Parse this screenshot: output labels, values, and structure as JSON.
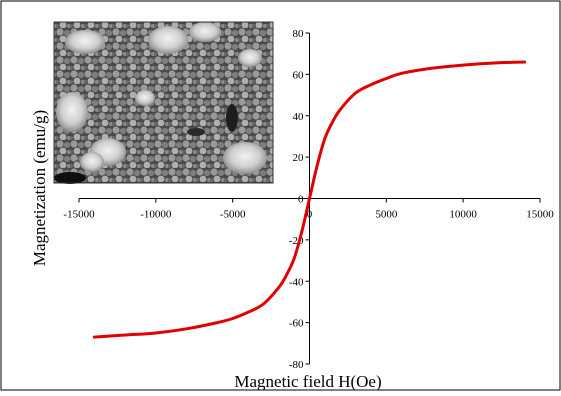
{
  "chart_data": {
    "type": "line",
    "title": "",
    "xlabel": "Magnetic field H(Oe)",
    "ylabel": "Magnetization (emu/g)",
    "xlim": [
      -15000,
      15000
    ],
    "ylim": [
      -80,
      80
    ],
    "x_ticks": [
      -15000,
      -10000,
      -5000,
      0,
      5000,
      10000,
      15000
    ],
    "y_ticks": [
      -80,
      -60,
      -40,
      -20,
      0,
      20,
      40,
      60,
      80
    ],
    "x_tick_labels": [
      "-15000",
      "-10000",
      "-5000",
      "0",
      "5000",
      "10000",
      "15000"
    ],
    "y_tick_labels": [
      "-80",
      "-60",
      "-40",
      "-20",
      "0",
      "20",
      "40",
      "60",
      "80"
    ],
    "grid": false,
    "legend": "none",
    "inset": "SEM micrograph of nanoparticles (top-left)",
    "series": [
      {
        "color": "#e00000",
        "x": [
          -14000,
          -12000,
          -10000,
          -8000,
          -6000,
          -5000,
          -4000,
          -3000,
          -2000,
          -1500,
          -1000,
          -500,
          0,
          500,
          1000,
          1500,
          2000,
          3000,
          4000,
          5000,
          6000,
          8000,
          10000,
          12000,
          14000
        ],
        "y": [
          -67,
          -66,
          -65,
          -63,
          -60,
          -58,
          -55,
          -51,
          -43,
          -37,
          -29,
          -16,
          0,
          16,
          29,
          37,
          43,
          51,
          55,
          58,
          60.5,
          63,
          64.5,
          65.5,
          66
        ]
      }
    ]
  }
}
